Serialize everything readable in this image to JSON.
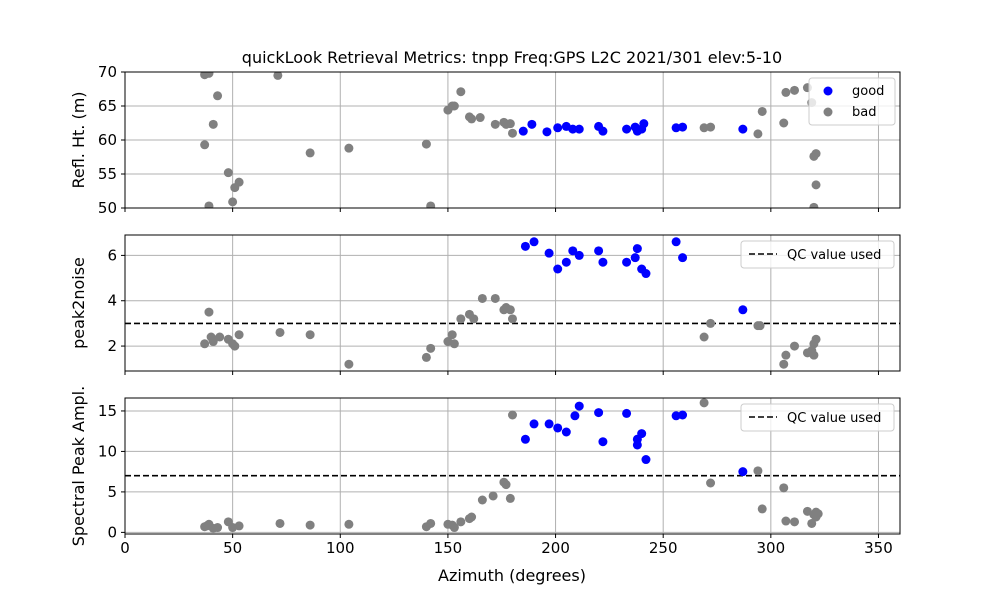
{
  "chart_data": {
    "type": "scatter",
    "title": "quickLook Retrieval Metrics: tnpp Freq:GPS L2C 2021/301  elev:5-10",
    "xlabel": "Azimuth (degrees)",
    "xlim": [
      0,
      360
    ],
    "x_ticks": [
      0,
      50,
      100,
      150,
      200,
      250,
      300,
      350
    ],
    "x_tick_labels": [
      "0",
      "50",
      "100",
      "150",
      "200",
      "250",
      "300",
      "350"
    ],
    "grid": true,
    "colors": {
      "good": "#0000ff",
      "bad": "#808080",
      "qc_line": "#000000",
      "grid": "#b0b0b0"
    },
    "panels": [
      {
        "id": "refl",
        "ylabel": "Refl. Ht. (m)",
        "ylim": [
          50,
          70
        ],
        "y_ticks": [
          50,
          55,
          60,
          65,
          70
        ],
        "y_tick_labels": [
          "50",
          "55",
          "60",
          "65",
          "70"
        ],
        "legend": {
          "placement": "upper-right",
          "entries": [
            "good",
            "bad"
          ]
        },
        "series": [
          {
            "name": "good",
            "color": "#0000ff",
            "points": [
              [
                185,
                61.3
              ],
              [
                189,
                62.3
              ],
              [
                196,
                61.2
              ],
              [
                201,
                61.8
              ],
              [
                205,
                62.0
              ],
              [
                208,
                61.6
              ],
              [
                211,
                61.6
              ],
              [
                220,
                62.0
              ],
              [
                222,
                61.3
              ],
              [
                233,
                61.6
              ],
              [
                237,
                61.9
              ],
              [
                238,
                61.3
              ],
              [
                240,
                61.6
              ],
              [
                241,
                62.4
              ],
              [
                256,
                61.8
              ],
              [
                259,
                61.9
              ],
              [
                287,
                61.6
              ]
            ]
          },
          {
            "name": "bad",
            "color": "#808080",
            "points": [
              [
                37,
                69.6
              ],
              [
                39,
                69.8
              ],
              [
                37,
                59.3
              ],
              [
                39,
                50.3
              ],
              [
                41,
                62.3
              ],
              [
                43,
                66.5
              ],
              [
                48,
                55.2
              ],
              [
                50,
                50.9
              ],
              [
                51,
                53.0
              ],
              [
                53,
                53.8
              ],
              [
                71,
                69.5
              ],
              [
                86,
                58.1
              ],
              [
                104,
                58.8
              ],
              [
                140,
                59.4
              ],
              [
                142,
                50.3
              ],
              [
                150,
                64.4
              ],
              [
                152,
                65.0
              ],
              [
                153,
                65.0
              ],
              [
                156,
                67.1
              ],
              [
                160,
                63.4
              ],
              [
                161,
                63.1
              ],
              [
                165,
                63.3
              ],
              [
                172,
                62.3
              ],
              [
                176,
                62.6
              ],
              [
                177,
                62.3
              ],
              [
                179,
                62.4
              ],
              [
                180,
                61.0
              ],
              [
                269,
                61.8
              ],
              [
                272,
                61.9
              ],
              [
                294,
                60.9
              ],
              [
                296,
                64.2
              ],
              [
                306,
                62.5
              ],
              [
                307,
                67.0
              ],
              [
                311,
                67.3
              ],
              [
                317,
                67.7
              ],
              [
                319,
                65.5
              ],
              [
                320,
                57.6
              ],
              [
                321,
                58.0
              ],
              [
                321,
                53.4
              ],
              [
                320,
                50.1
              ]
            ]
          }
        ]
      },
      {
        "id": "peak2noise",
        "ylabel": "peak2noise",
        "ylim": [
          0.9,
          6.9
        ],
        "y_ticks": [
          2,
          4,
          6
        ],
        "y_tick_labels": [
          "2",
          "4",
          "6"
        ],
        "qc_value": 3.0,
        "legend": {
          "placement": "upper-right",
          "entries": [
            "QC value used"
          ]
        },
        "qc_label": "QC value used",
        "series": [
          {
            "name": "good",
            "color": "#0000ff",
            "points": [
              [
                186,
                6.4
              ],
              [
                190,
                6.6
              ],
              [
                197,
                6.1
              ],
              [
                201,
                5.4
              ],
              [
                205,
                5.7
              ],
              [
                208,
                6.2
              ],
              [
                211,
                6.0
              ],
              [
                220,
                6.2
              ],
              [
                222,
                5.7
              ],
              [
                233,
                5.7
              ],
              [
                237,
                5.9
              ],
              [
                238,
                6.3
              ],
              [
                240,
                5.4
              ],
              [
                242,
                5.2
              ],
              [
                256,
                6.6
              ],
              [
                259,
                5.9
              ],
              [
                287,
                3.6
              ]
            ]
          },
          {
            "name": "bad",
            "color": "#808080",
            "points": [
              [
                37,
                2.1
              ],
              [
                39,
                3.5
              ],
              [
                40,
                2.4
              ],
              [
                41,
                2.2
              ],
              [
                44,
                2.4
              ],
              [
                48,
                2.3
              ],
              [
                50,
                2.1
              ],
              [
                51,
                2.0
              ],
              [
                53,
                2.5
              ],
              [
                72,
                2.6
              ],
              [
                86,
                2.5
              ],
              [
                104,
                1.2
              ],
              [
                140,
                1.5
              ],
              [
                142,
                1.9
              ],
              [
                150,
                2.2
              ],
              [
                152,
                2.5
              ],
              [
                153,
                2.1
              ],
              [
                156,
                3.2
              ],
              [
                160,
                3.4
              ],
              [
                162,
                3.2
              ],
              [
                166,
                4.1
              ],
              [
                172,
                4.1
              ],
              [
                176,
                3.6
              ],
              [
                177,
                3.7
              ],
              [
                179,
                3.6
              ],
              [
                180,
                3.2
              ],
              [
                269,
                2.4
              ],
              [
                272,
                3.0
              ],
              [
                294,
                2.9
              ],
              [
                295,
                2.9
              ],
              [
                306,
                1.2
              ],
              [
                307,
                1.6
              ],
              [
                311,
                2.0
              ],
              [
                317,
                1.7
              ],
              [
                319,
                1.8
              ],
              [
                320,
                2.1
              ],
              [
                320,
                1.6
              ],
              [
                321,
                2.3
              ]
            ]
          }
        ]
      },
      {
        "id": "spectral",
        "ylabel": "Spectral Peak Ampl.",
        "ylim": [
          -0.2,
          16.6
        ],
        "y_ticks": [
          0,
          5,
          10,
          15
        ],
        "y_tick_labels": [
          "0",
          "5",
          "10",
          "15"
        ],
        "qc_value": 7.0,
        "legend": {
          "placement": "upper-right",
          "entries": [
            "QC value used"
          ]
        },
        "qc_label": "QC value used",
        "series": [
          {
            "name": "good",
            "color": "#0000ff",
            "points": [
              [
                186,
                11.5
              ],
              [
                190,
                13.4
              ],
              [
                197,
                13.4
              ],
              [
                201,
                12.9
              ],
              [
                205,
                12.4
              ],
              [
                209,
                14.4
              ],
              [
                211,
                15.6
              ],
              [
                220,
                14.8
              ],
              [
                222,
                11.2
              ],
              [
                233,
                14.7
              ],
              [
                238,
                11.5
              ],
              [
                238,
                10.8
              ],
              [
                240,
                12.2
              ],
              [
                242,
                9.0
              ],
              [
                256,
                14.4
              ],
              [
                259,
                14.5
              ],
              [
                287,
                7.5
              ]
            ]
          },
          {
            "name": "bad",
            "color": "#808080",
            "points": [
              [
                37,
                0.7
              ],
              [
                38,
                0.8
              ],
              [
                39,
                1.0
              ],
              [
                41,
                0.5
              ],
              [
                43,
                0.6
              ],
              [
                48,
                1.3
              ],
              [
                50,
                0.6
              ],
              [
                53,
                0.8
              ],
              [
                72,
                1.1
              ],
              [
                86,
                0.9
              ],
              [
                104,
                1.0
              ],
              [
                140,
                0.7
              ],
              [
                142,
                1.1
              ],
              [
                150,
                1.0
              ],
              [
                152,
                0.9
              ],
              [
                153,
                0.6
              ],
              [
                156,
                1.3
              ],
              [
                160,
                1.7
              ],
              [
                161,
                1.9
              ],
              [
                166,
                4.0
              ],
              [
                171,
                4.5
              ],
              [
                176,
                6.2
              ],
              [
                177,
                5.9
              ],
              [
                179,
                4.2
              ],
              [
                180,
                14.5
              ],
              [
                269,
                16.0
              ],
              [
                272,
                6.1
              ],
              [
                294,
                7.6
              ],
              [
                296,
                2.9
              ],
              [
                306,
                5.5
              ],
              [
                307,
                1.4
              ],
              [
                311,
                1.3
              ],
              [
                317,
                2.6
              ],
              [
                319,
                1.1
              ],
              [
                320,
                2.2
              ],
              [
                321,
                2.5
              ],
              [
                321,
                1.9
              ],
              [
                322,
                2.3
              ]
            ]
          }
        ]
      }
    ]
  }
}
